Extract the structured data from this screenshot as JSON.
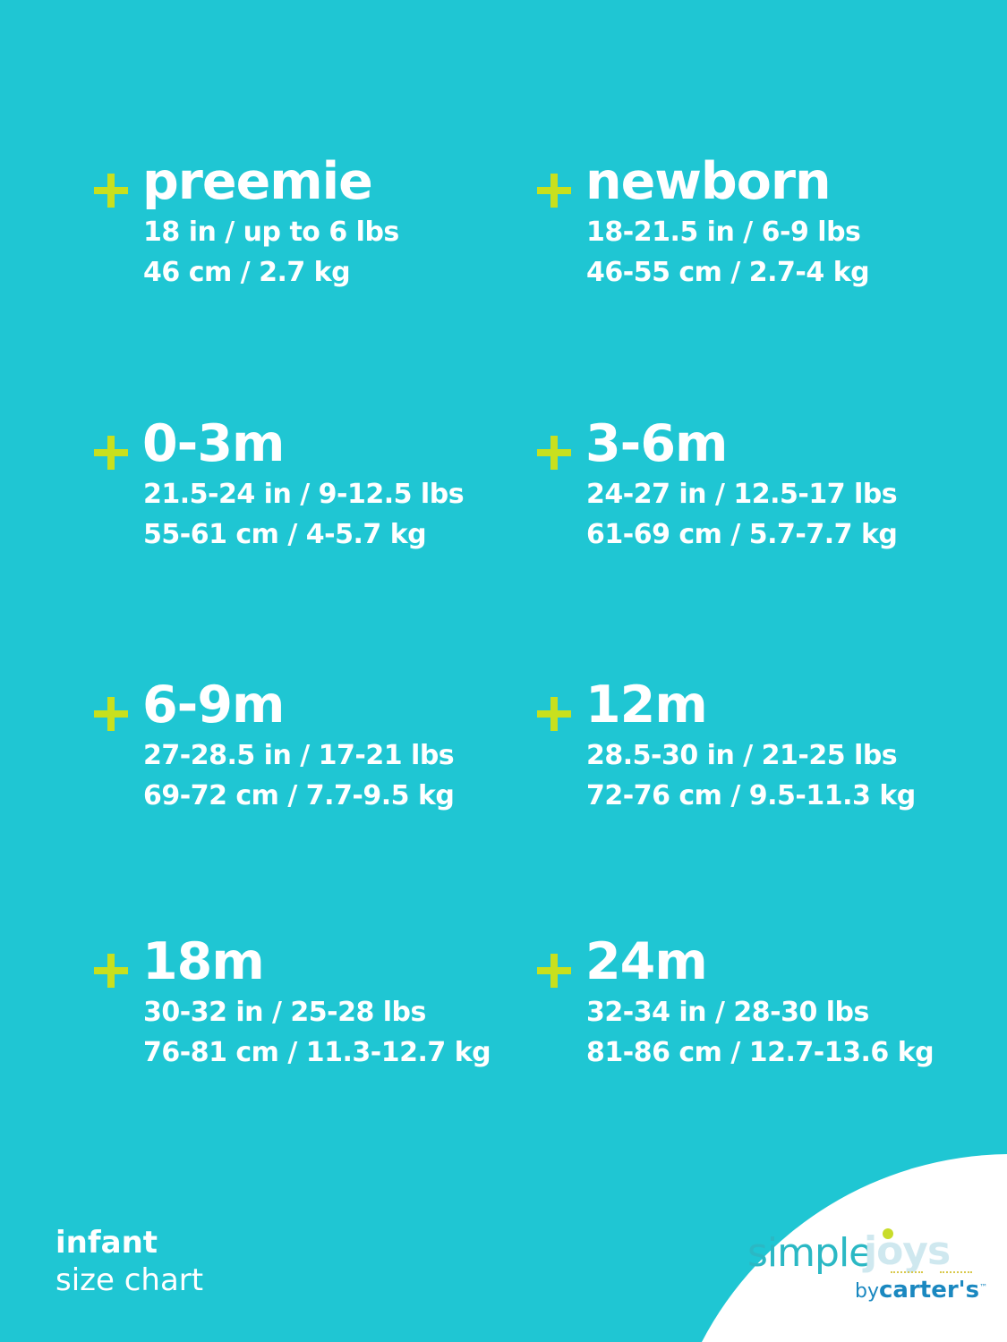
{
  "sizes": [
    {
      "name": "preemie",
      "line1": "18 in / up to 6 lbs",
      "line2": "46 cm / 2.7 kg"
    },
    {
      "name": "newborn",
      "line1": "18-21.5 in / 6-9 lbs",
      "line2": "46-55 cm / 2.7-4 kg"
    },
    {
      "name": "0-3m",
      "line1": "21.5-24 in / 9-12.5 lbs",
      "line2": "55-61 cm / 4-5.7 kg"
    },
    {
      "name": "3-6m",
      "line1": "24-27 in / 12.5-17 lbs",
      "line2": "61-69 cm / 5.7-7.7 kg"
    },
    {
      "name": "6-9m",
      "line1": "27-28.5 in / 17-21 lbs",
      "line2": "69-72 cm / 7.7-9.5 kg"
    },
    {
      "name": "12m",
      "line1": "28.5-30 in / 21-25 lbs",
      "line2": "72-76 cm / 9.5-11.3 kg"
    },
    {
      "name": "18m",
      "line1": "30-32 in / 25-28 lbs",
      "line2": "76-81 cm / 11.3-12.7 kg"
    },
    {
      "name": "24m",
      "line1": "32-34 in / 28-30 lbs",
      "line2": "81-86 cm / 12.7-13.6 kg"
    }
  ],
  "footer": {
    "line1": "infant",
    "line2": "size chart"
  },
  "logo": {
    "simple": "simple",
    "joys": "joys",
    "by": "by",
    "brand": "carter's",
    "tm": "™"
  },
  "colors": {
    "background": "#1fc6d3",
    "plus": "#c8e01e",
    "text": "#ffffff",
    "logo_teal": "#2bb8c4",
    "logo_blue": "#1a88c0"
  },
  "icons": {
    "bullet": "plus-icon"
  }
}
